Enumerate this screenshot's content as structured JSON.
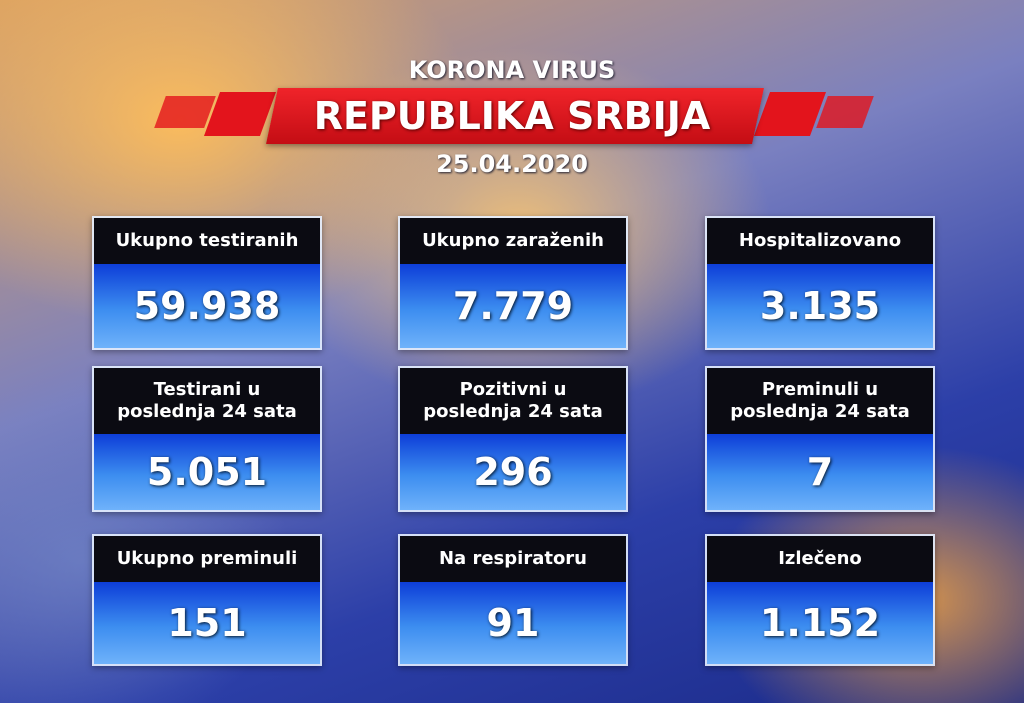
{
  "header": {
    "subtitle": "KORONA VIRUS",
    "title": "REPUBLIKA SRBIJA",
    "date": "25.04.2020"
  },
  "cards": [
    {
      "label": "Ukupno testiranih",
      "value": "59.938"
    },
    {
      "label": "Ukupno zaraženih",
      "value": "7.779"
    },
    {
      "label": "Hospitalizovano",
      "value": "3.135"
    },
    {
      "label": "Testirani u\nposlednja 24 sata",
      "value": "5.051"
    },
    {
      "label": "Pozitivni u\nposlednja 24 sata",
      "value": "296"
    },
    {
      "label": "Preminuli u\nposlednja 24 sata",
      "value": "7"
    },
    {
      "label": "Ukupno preminuli",
      "value": "151"
    },
    {
      "label": "Na respiratoru",
      "value": "91"
    },
    {
      "label": "Izlečeno",
      "value": "1.152"
    }
  ]
}
